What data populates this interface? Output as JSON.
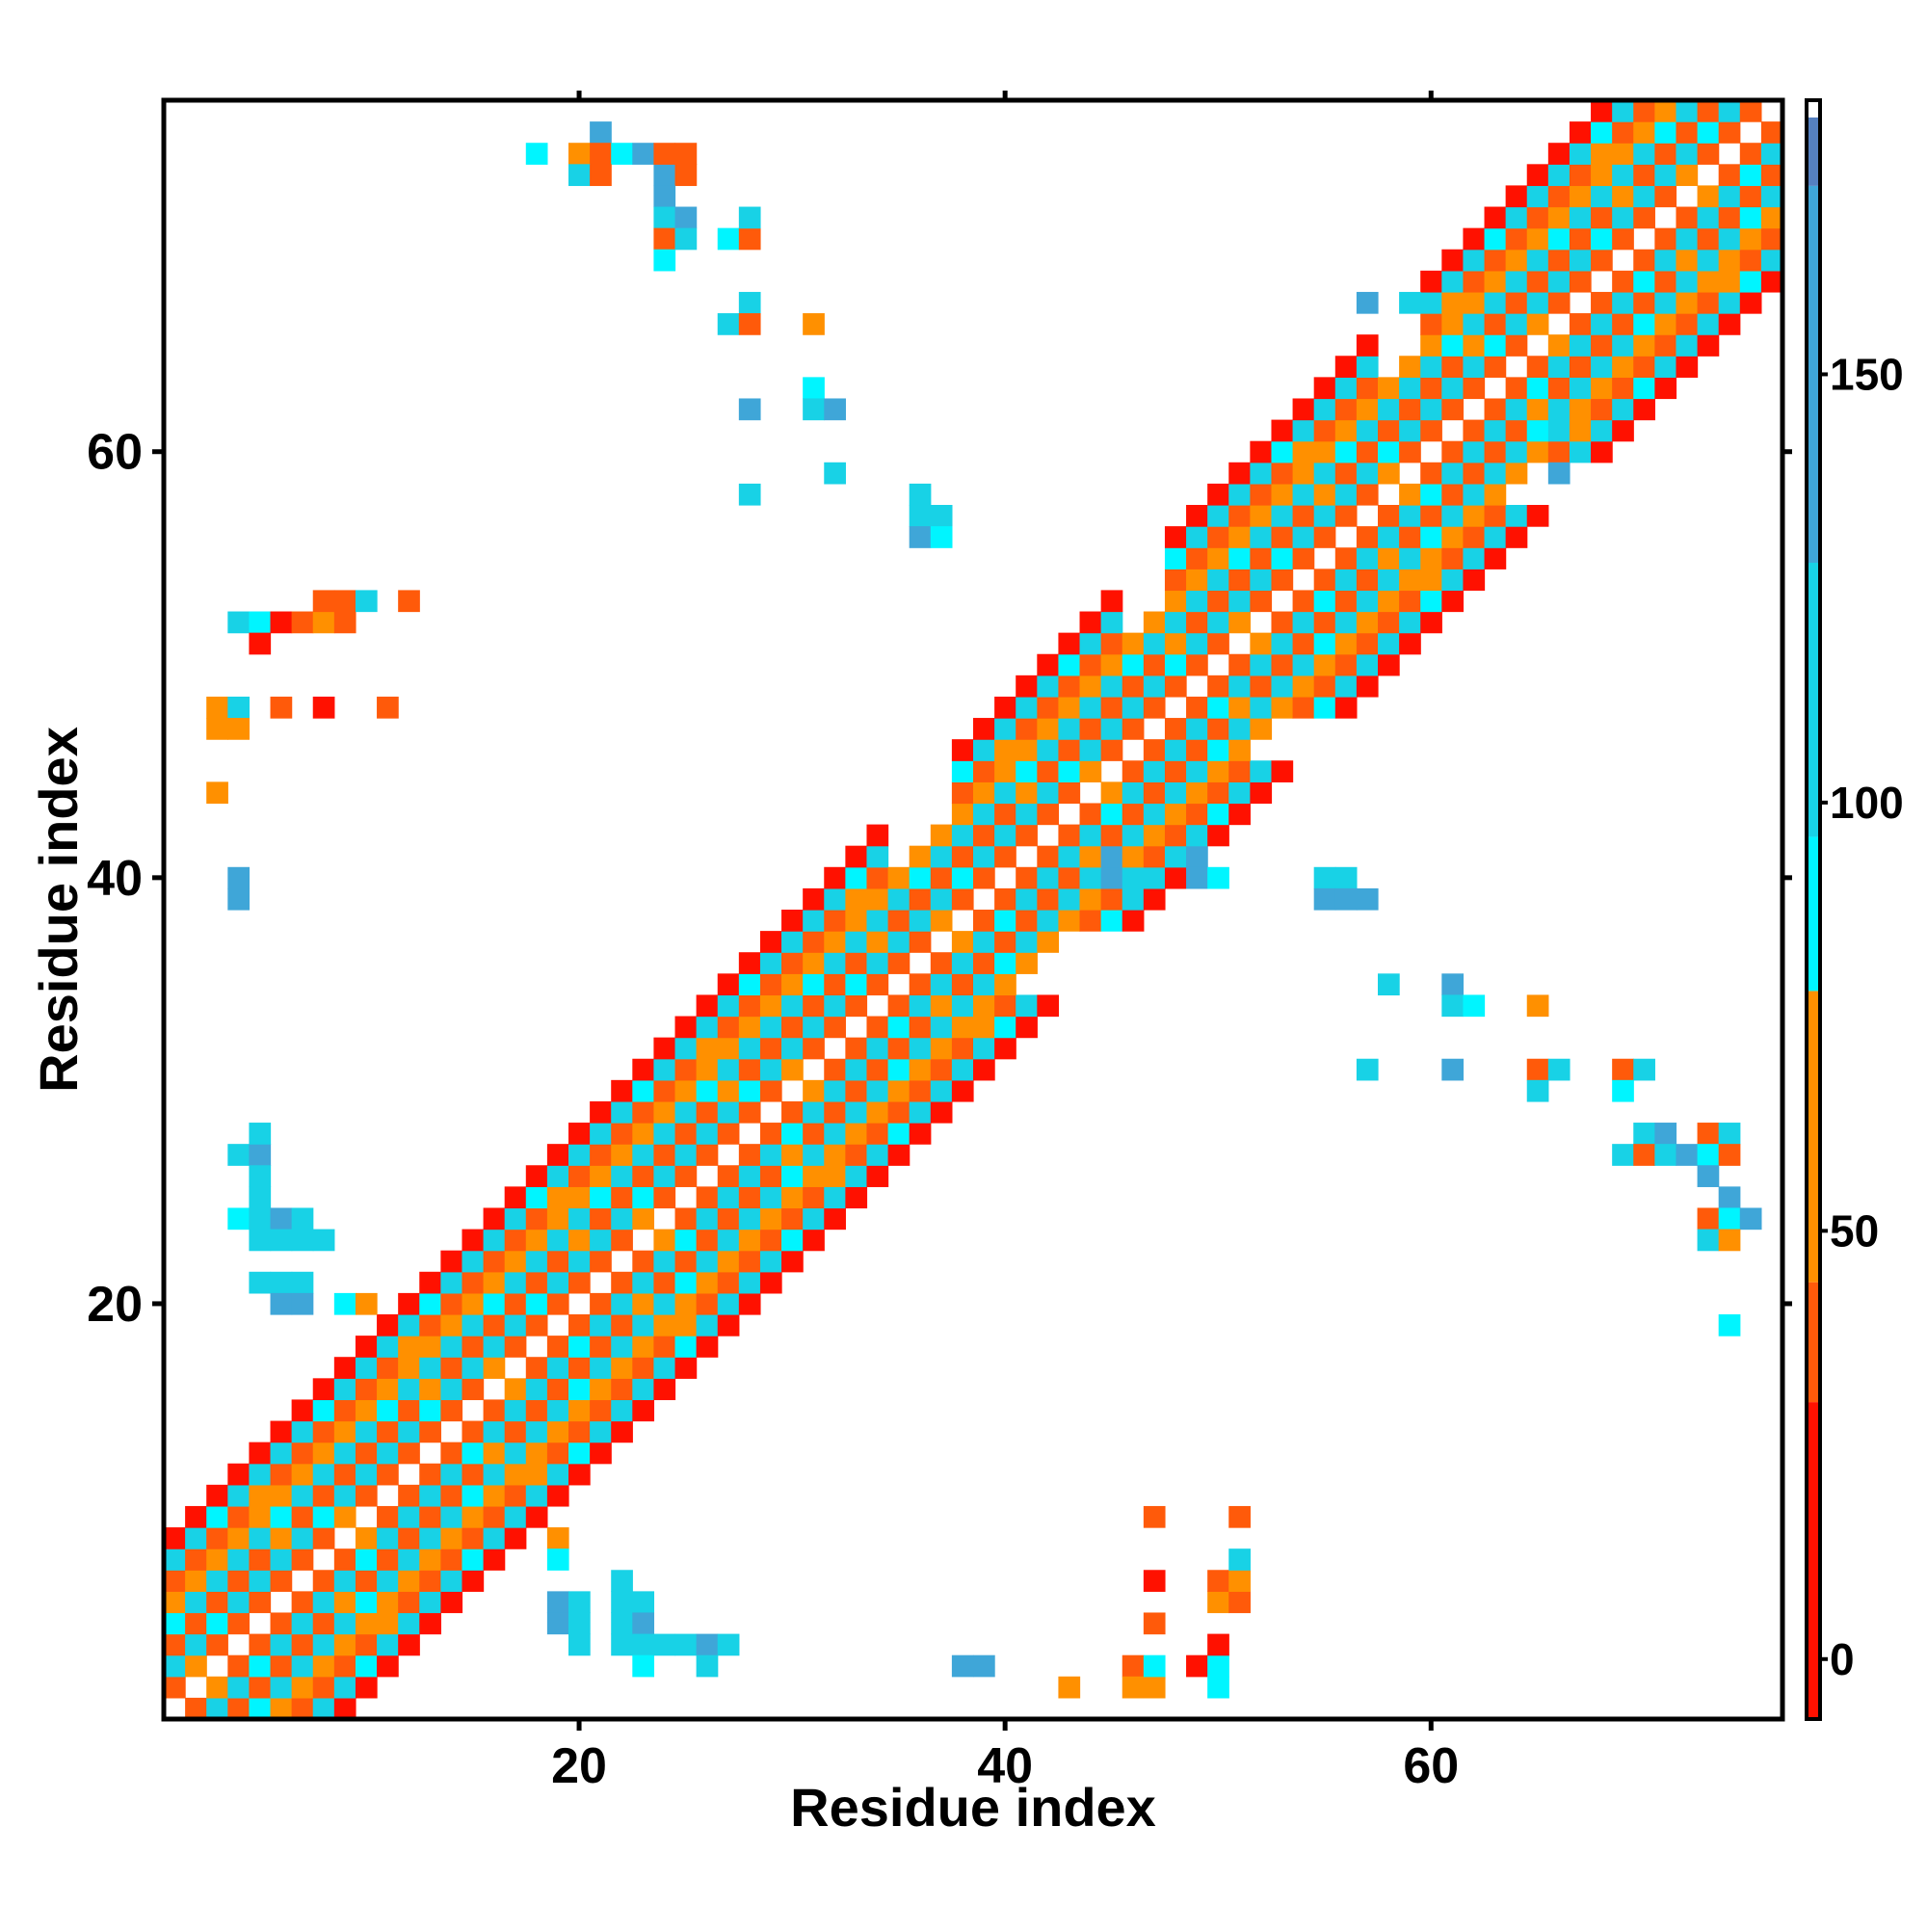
{
  "chart_data": {
    "type": "heatmap",
    "title": "",
    "xlabel": "Residue index",
    "ylabel": "Residue index",
    "xlim": [
      1,
      76
    ],
    "ylim": [
      1,
      76
    ],
    "x_ticks": [
      20,
      40,
      60
    ],
    "y_ticks": [
      20,
      40,
      60
    ],
    "colorbar": {
      "range": [
        -7,
        182
      ],
      "ticks": [
        0,
        50,
        100,
        150
      ],
      "bands": [
        {
          "from": -7,
          "to": 30,
          "color": "#ff1100"
        },
        {
          "from": 30,
          "to": 44,
          "color": "#ff5a0a"
        },
        {
          "from": 44,
          "to": 78,
          "color": "#ff9000"
        },
        {
          "from": 78,
          "to": 96,
          "color": "#00f5ff"
        },
        {
          "from": 96,
          "to": 128,
          "color": "#18d2e6"
        },
        {
          "from": 128,
          "to": 172,
          "color": "#3fa6d8"
        },
        {
          "from": 172,
          "to": 180,
          "color": "#5580c0"
        },
        {
          "from": 180,
          "to": 182,
          "color": "#ffffff"
        }
      ]
    },
    "category_values": {
      "red": 10,
      "orange_red": 35,
      "orange": 55,
      "cyan": 90,
      "turquoise": 115,
      "steel_blue": 150
    },
    "band_profile": {
      "1": "orange_red",
      "2": "turquoise",
      "3": "orange_red",
      "4": "turquoise",
      "5": "orange",
      "6": "orange_red",
      "7": "turquoise",
      "8": "red"
    },
    "diagonal_band_width": 8,
    "gaps": [
      [
        35,
        37
      ],
      [
        46,
        47
      ],
      [
        58,
        59
      ]
    ],
    "off_diagonal_contacts": [
      {
        "x": 4,
        "y": 52,
        "c": "turquoise"
      },
      {
        "x": 5,
        "y": 52,
        "c": "cyan"
      },
      {
        "x": 6,
        "y": 52,
        "c": "red"
      },
      {
        "x": 7,
        "y": 52,
        "c": "orange_red"
      },
      {
        "x": 8,
        "y": 52,
        "c": "orange"
      },
      {
        "x": 9,
        "y": 52,
        "c": "orange_red"
      },
      {
        "x": 8,
        "y": 53,
        "c": "orange_red"
      },
      {
        "x": 9,
        "y": 53,
        "c": "orange_red"
      },
      {
        "x": 10,
        "y": 53,
        "c": "turquoise"
      },
      {
        "x": 12,
        "y": 53,
        "c": "orange_red"
      },
      {
        "x": 5,
        "y": 51,
        "c": "red"
      },
      {
        "x": 3,
        "y": 48,
        "c": "orange"
      },
      {
        "x": 4,
        "y": 48,
        "c": "turquoise"
      },
      {
        "x": 3,
        "y": 47,
        "c": "orange"
      },
      {
        "x": 4,
        "y": 47,
        "c": "orange"
      },
      {
        "x": 6,
        "y": 48,
        "c": "orange_red"
      },
      {
        "x": 8,
        "y": 48,
        "c": "red"
      },
      {
        "x": 11,
        "y": 48,
        "c": "orange_red"
      },
      {
        "x": 3,
        "y": 44,
        "c": "orange"
      },
      {
        "x": 4,
        "y": 40,
        "c": "steel_blue"
      },
      {
        "x": 4,
        "y": 39,
        "c": "steel_blue"
      },
      {
        "x": 4,
        "y": 27,
        "c": "turquoise"
      },
      {
        "x": 5,
        "y": 27,
        "c": "steel_blue"
      },
      {
        "x": 5,
        "y": 28,
        "c": "turquoise"
      },
      {
        "x": 5,
        "y": 26,
        "c": "turquoise"
      },
      {
        "x": 5,
        "y": 25,
        "c": "turquoise"
      },
      {
        "x": 4,
        "y": 24,
        "c": "cyan"
      },
      {
        "x": 5,
        "y": 24,
        "c": "turquoise"
      },
      {
        "x": 6,
        "y": 24,
        "c": "steel_blue"
      },
      {
        "x": 7,
        "y": 24,
        "c": "turquoise"
      },
      {
        "x": 5,
        "y": 23,
        "c": "turquoise"
      },
      {
        "x": 6,
        "y": 23,
        "c": "turquoise"
      },
      {
        "x": 7,
        "y": 23,
        "c": "turquoise"
      },
      {
        "x": 8,
        "y": 23,
        "c": "turquoise"
      },
      {
        "x": 5,
        "y": 21,
        "c": "turquoise"
      },
      {
        "x": 6,
        "y": 21,
        "c": "turquoise"
      },
      {
        "x": 7,
        "y": 21,
        "c": "turquoise"
      },
      {
        "x": 6,
        "y": 20,
        "c": "steel_blue"
      },
      {
        "x": 7,
        "y": 20,
        "c": "steel_blue"
      },
      {
        "x": 9,
        "y": 20,
        "c": "cyan"
      },
      {
        "x": 10,
        "y": 20,
        "c": "orange"
      },
      {
        "x": 18,
        "y": 74,
        "c": "cyan"
      },
      {
        "x": 21,
        "y": 75,
        "c": "steel_blue"
      },
      {
        "x": 20,
        "y": 74,
        "c": "orange"
      },
      {
        "x": 21,
        "y": 74,
        "c": "orange_red"
      },
      {
        "x": 22,
        "y": 74,
        "c": "cyan"
      },
      {
        "x": 20,
        "y": 73,
        "c": "turquoise"
      },
      {
        "x": 21,
        "y": 73,
        "c": "orange_red"
      },
      {
        "x": 23,
        "y": 74,
        "c": "steel_blue"
      },
      {
        "x": 24,
        "y": 73,
        "c": "steel_blue"
      },
      {
        "x": 24,
        "y": 74,
        "c": "orange_red"
      },
      {
        "x": 25,
        "y": 74,
        "c": "orange_red"
      },
      {
        "x": 25,
        "y": 73,
        "c": "orange_red"
      },
      {
        "x": 24,
        "y": 72,
        "c": "steel_blue"
      },
      {
        "x": 24,
        "y": 71,
        "c": "turquoise"
      },
      {
        "x": 25,
        "y": 71,
        "c": "steel_blue"
      },
      {
        "x": 24,
        "y": 70,
        "c": "orange_red"
      },
      {
        "x": 25,
        "y": 70,
        "c": "turquoise"
      },
      {
        "x": 24,
        "y": 69,
        "c": "cyan"
      },
      {
        "x": 27,
        "y": 70,
        "c": "cyan"
      },
      {
        "x": 28,
        "y": 70,
        "c": "orange_red"
      },
      {
        "x": 28,
        "y": 71,
        "c": "turquoise"
      },
      {
        "x": 28,
        "y": 67,
        "c": "turquoise"
      },
      {
        "x": 27,
        "y": 66,
        "c": "turquoise"
      },
      {
        "x": 28,
        "y": 66,
        "c": "orange_red"
      },
      {
        "x": 31,
        "y": 66,
        "c": "orange"
      },
      {
        "x": 28,
        "y": 62,
        "c": "steel_blue"
      },
      {
        "x": 31,
        "y": 63,
        "c": "cyan"
      },
      {
        "x": 31,
        "y": 62,
        "c": "turquoise"
      },
      {
        "x": 32,
        "y": 62,
        "c": "steel_blue"
      },
      {
        "x": 32,
        "y": 59,
        "c": "turquoise"
      },
      {
        "x": 28,
        "y": 58,
        "c": "turquoise"
      },
      {
        "x": 36,
        "y": 58,
        "c": "turquoise"
      },
      {
        "x": 36,
        "y": 57,
        "c": "turquoise"
      },
      {
        "x": 37,
        "y": 57,
        "c": "turquoise"
      },
      {
        "x": 36,
        "y": 56,
        "c": "steel_blue"
      },
      {
        "x": 37,
        "y": 56,
        "c": "cyan"
      },
      {
        "x": 57,
        "y": 67,
        "c": "steel_blue"
      },
      {
        "x": 59,
        "y": 67,
        "c": "turquoise"
      },
      {
        "x": 66,
        "y": 61,
        "c": "turquoise"
      },
      {
        "x": 66,
        "y": 59,
        "c": "steel_blue"
      },
      {
        "x": 45,
        "y": 40,
        "c": "steel_blue"
      },
      {
        "x": 46,
        "y": 40,
        "c": "turquoise"
      },
      {
        "x": 49,
        "y": 40,
        "c": "steel_blue"
      },
      {
        "x": 50,
        "y": 40,
        "c": "cyan"
      },
      {
        "x": 55,
        "y": 40,
        "c": "turquoise"
      },
      {
        "x": 56,
        "y": 40,
        "c": "turquoise"
      },
      {
        "x": 55,
        "y": 39,
        "c": "steel_blue"
      },
      {
        "x": 56,
        "y": 39,
        "c": "steel_blue"
      },
      {
        "x": 57,
        "y": 39,
        "c": "steel_blue"
      },
      {
        "x": 45,
        "y": 41,
        "c": "steel_blue"
      },
      {
        "x": 49,
        "y": 41,
        "c": "steel_blue"
      },
      {
        "x": 48,
        "y": 41,
        "c": "turquoise"
      },
      {
        "x": 58,
        "y": 35,
        "c": "turquoise"
      },
      {
        "x": 61,
        "y": 35,
        "c": "steel_blue"
      },
      {
        "x": 61,
        "y": 34,
        "c": "turquoise"
      },
      {
        "x": 62,
        "y": 34,
        "c": "cyan"
      },
      {
        "x": 65,
        "y": 34,
        "c": "orange"
      },
      {
        "x": 57,
        "y": 31,
        "c": "turquoise"
      },
      {
        "x": 61,
        "y": 31,
        "c": "steel_blue"
      },
      {
        "x": 65,
        "y": 31,
        "c": "orange_red"
      },
      {
        "x": 66,
        "y": 31,
        "c": "turquoise"
      },
      {
        "x": 69,
        "y": 31,
        "c": "orange_red"
      },
      {
        "x": 70,
        "y": 31,
        "c": "turquoise"
      },
      {
        "x": 65,
        "y": 30,
        "c": "turquoise"
      },
      {
        "x": 69,
        "y": 30,
        "c": "cyan"
      },
      {
        "x": 70,
        "y": 28,
        "c": "turquoise"
      },
      {
        "x": 71,
        "y": 28,
        "c": "steel_blue"
      },
      {
        "x": 73,
        "y": 28,
        "c": "orange_red"
      },
      {
        "x": 74,
        "y": 28,
        "c": "turquoise"
      },
      {
        "x": 69,
        "y": 27,
        "c": "turquoise"
      },
      {
        "x": 70,
        "y": 27,
        "c": "orange_red"
      },
      {
        "x": 71,
        "y": 27,
        "c": "turquoise"
      },
      {
        "x": 72,
        "y": 27,
        "c": "steel_blue"
      },
      {
        "x": 73,
        "y": 27,
        "c": "cyan"
      },
      {
        "x": 74,
        "y": 27,
        "c": "orange_red"
      },
      {
        "x": 73,
        "y": 26,
        "c": "steel_blue"
      },
      {
        "x": 74,
        "y": 25,
        "c": "steel_blue"
      },
      {
        "x": 73,
        "y": 24,
        "c": "orange_red"
      },
      {
        "x": 74,
        "y": 24,
        "c": "cyan"
      },
      {
        "x": 75,
        "y": 24,
        "c": "steel_blue"
      },
      {
        "x": 73,
        "y": 23,
        "c": "turquoise"
      },
      {
        "x": 74,
        "y": 23,
        "c": "orange"
      },
      {
        "x": 74,
        "y": 19,
        "c": "cyan"
      },
      {
        "x": 19,
        "y": 9,
        "c": "orange"
      },
      {
        "x": 19,
        "y": 8,
        "c": "cyan"
      },
      {
        "x": 19,
        "y": 6,
        "c": "steel_blue"
      },
      {
        "x": 19,
        "y": 5,
        "c": "steel_blue"
      },
      {
        "x": 20,
        "y": 6,
        "c": "turquoise"
      },
      {
        "x": 20,
        "y": 5,
        "c": "turquoise"
      },
      {
        "x": 20,
        "y": 4,
        "c": "turquoise"
      },
      {
        "x": 22,
        "y": 7,
        "c": "turquoise"
      },
      {
        "x": 22,
        "y": 6,
        "c": "turquoise"
      },
      {
        "x": 22,
        "y": 5,
        "c": "turquoise"
      },
      {
        "x": 22,
        "y": 4,
        "c": "turquoise"
      },
      {
        "x": 23,
        "y": 6,
        "c": "turquoise"
      },
      {
        "x": 23,
        "y": 5,
        "c": "steel_blue"
      },
      {
        "x": 23,
        "y": 4,
        "c": "turquoise"
      },
      {
        "x": 23,
        "y": 3,
        "c": "cyan"
      },
      {
        "x": 24,
        "y": 4,
        "c": "turquoise"
      },
      {
        "x": 25,
        "y": 4,
        "c": "turquoise"
      },
      {
        "x": 26,
        "y": 4,
        "c": "steel_blue"
      },
      {
        "x": 26,
        "y": 3,
        "c": "turquoise"
      },
      {
        "x": 27,
        "y": 4,
        "c": "turquoise"
      },
      {
        "x": 38,
        "y": 3,
        "c": "steel_blue"
      },
      {
        "x": 39,
        "y": 3,
        "c": "steel_blue"
      },
      {
        "x": 43,
        "y": 2,
        "c": "orange"
      },
      {
        "x": 46,
        "y": 3,
        "c": "orange_red"
      },
      {
        "x": 46,
        "y": 2,
        "c": "orange"
      },
      {
        "x": 47,
        "y": 2,
        "c": "orange"
      },
      {
        "x": 47,
        "y": 3,
        "c": "cyan"
      },
      {
        "x": 47,
        "y": 5,
        "c": "orange_red"
      },
      {
        "x": 47,
        "y": 7,
        "c": "red"
      },
      {
        "x": 47,
        "y": 10,
        "c": "orange_red"
      },
      {
        "x": 49,
        "y": 3,
        "c": "red"
      },
      {
        "x": 50,
        "y": 3,
        "c": "cyan"
      },
      {
        "x": 50,
        "y": 2,
        "c": "cyan"
      },
      {
        "x": 50,
        "y": 4,
        "c": "red"
      },
      {
        "x": 50,
        "y": 6,
        "c": "orange"
      },
      {
        "x": 50,
        "y": 7,
        "c": "orange_red"
      },
      {
        "x": 51,
        "y": 6,
        "c": "orange_red"
      },
      {
        "x": 51,
        "y": 7,
        "c": "orange"
      },
      {
        "x": 51,
        "y": 8,
        "c": "turquoise"
      },
      {
        "x": 51,
        "y": 10,
        "c": "orange_red"
      }
    ]
  }
}
